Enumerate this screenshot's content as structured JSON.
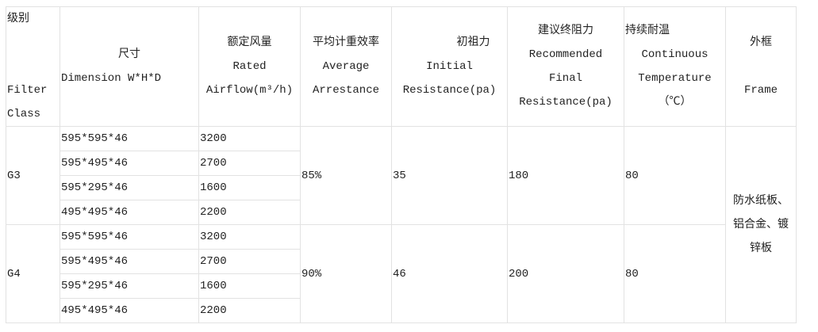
{
  "headers": {
    "class": [
      "级别",
      "Filter",
      "Class"
    ],
    "dimension": [
      "尺寸",
      "Dimension W*H*D"
    ],
    "airflow": [
      "额定风量",
      "Rated",
      "Airflow(m³/h)"
    ],
    "arrestance": [
      "平均计重效率",
      "Average",
      "Arrestance"
    ],
    "initial": [
      "初祖力",
      "Initial",
      "Resistance(pa)"
    ],
    "final": [
      "建议终阻力",
      "Recommended",
      "Final",
      "Resistance(pa)"
    ],
    "temperature": [
      "持续耐温",
      "Continuous",
      "Temperature",
      "（℃）"
    ],
    "frame": [
      "外框",
      "Frame"
    ]
  },
  "groups": [
    {
      "class": "G3",
      "arrestance": "85%",
      "initial": "35",
      "final": "180",
      "temperature": "80",
      "rows": [
        {
          "dimension": "595*595*46",
          "airflow": "3200"
        },
        {
          "dimension": "595*495*46",
          "airflow": "2700"
        },
        {
          "dimension": "595*295*46",
          "airflow": "1600"
        },
        {
          "dimension": "495*495*46",
          "airflow": "2200"
        }
      ]
    },
    {
      "class": "G4",
      "arrestance": "90%",
      "initial": "46",
      "final": "200",
      "temperature": "80",
      "rows": [
        {
          "dimension": "595*595*46",
          "airflow": "3200"
        },
        {
          "dimension": "595*495*46",
          "airflow": "2700"
        },
        {
          "dimension": "595*295*46",
          "airflow": "1600"
        },
        {
          "dimension": "495*495*46",
          "airflow": "2200"
        }
      ]
    }
  ],
  "frame": [
    "防水纸板、",
    "铝合金、镀",
    "锌板"
  ]
}
